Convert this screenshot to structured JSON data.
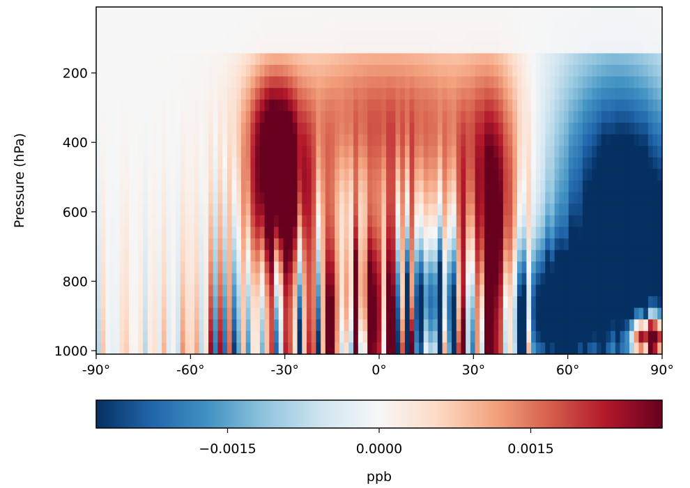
{
  "chart_data": {
    "type": "heatmap",
    "title": "",
    "xlabel": "",
    "ylabel": "Pressure (hPa)",
    "x_ticks": [
      {
        "value": -90,
        "label": "-90°"
      },
      {
        "value": -60,
        "label": "-60°"
      },
      {
        "value": -30,
        "label": "-30°"
      },
      {
        "value": 0,
        "label": "0°"
      },
      {
        "value": 30,
        "label": "30°"
      },
      {
        "value": 60,
        "label": "60°"
      },
      {
        "value": 90,
        "label": "90°"
      }
    ],
    "y_ticks": [
      {
        "value": 200,
        "label": "200"
      },
      {
        "value": 400,
        "label": "400"
      },
      {
        "value": 600,
        "label": "600"
      },
      {
        "value": 800,
        "label": "800"
      },
      {
        "value": 1000,
        "label": "1000"
      }
    ],
    "xlim": [
      -90,
      90
    ],
    "ylim": [
      1010,
      10
    ],
    "colorbar": {
      "label": "ppb",
      "colormap": "RdBu_r",
      "range": [
        -0.0028,
        0.0028
      ],
      "ticks": [
        {
          "value": -0.0015,
          "label": "−0.0015"
        },
        {
          "value": 0.0,
          "label": "0.0000"
        },
        {
          "value": 0.0015,
          "label": "0.0015"
        }
      ]
    },
    "grid": {
      "lat_columns": 121,
      "lat_range": [
        -90,
        90
      ],
      "pressure_rows": 30,
      "pressure_range": [
        10,
        1010
      ]
    },
    "field_features": [
      {
        "lat": -32,
        "p": 570,
        "sigma_lat": 7,
        "sigma_p": 160,
        "value": 0.0034
      },
      {
        "lat": -34,
        "p": 330,
        "sigma_lat": 6,
        "sigma_p": 120,
        "value": 0.0016
      },
      {
        "lat": -8,
        "p": 320,
        "sigma_lat": 20,
        "sigma_p": 170,
        "value": 0.001
      },
      {
        "lat": 36,
        "p": 720,
        "sigma_lat": 6,
        "sigma_p": 300,
        "value": 0.003
      },
      {
        "lat": 20,
        "p": 360,
        "sigma_lat": 25,
        "sigma_p": 190,
        "value": 0.0011
      },
      {
        "lat": 80,
        "p": 760,
        "sigma_lat": 13,
        "sigma_p": 270,
        "value": -0.0036
      },
      {
        "lat": 55,
        "p": 900,
        "sigma_lat": 10,
        "sigma_p": 140,
        "value": -0.0034
      },
      {
        "lat": 15,
        "p": 860,
        "sigma_lat": 9,
        "sigma_p": 120,
        "value": -0.0025
      },
      {
        "lat": 72,
        "p": 420,
        "sigma_lat": 17,
        "sigma_p": 260,
        "value": -0.0017
      },
      {
        "lat": -3,
        "p": 860,
        "sigma_lat": 8,
        "sigma_p": 160,
        "value": 0.0025
      },
      {
        "lat": 86,
        "p": 960,
        "sigma_lat": 4,
        "sigma_p": 40,
        "value": 0.006
      }
    ]
  }
}
